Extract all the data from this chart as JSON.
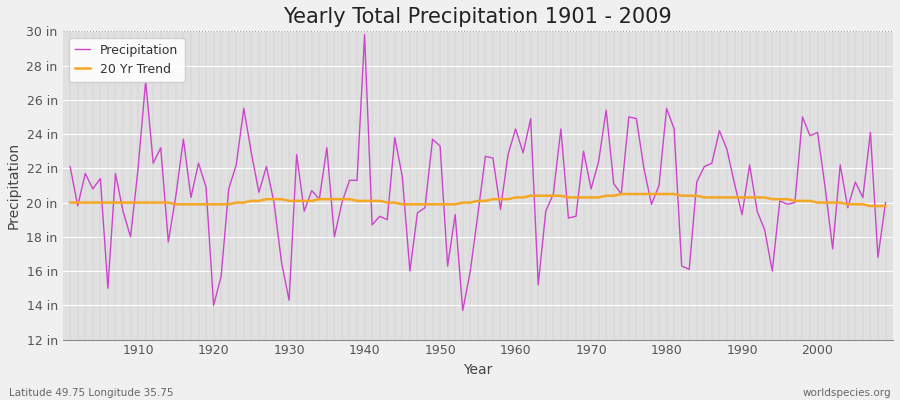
{
  "title": "Yearly Total Precipitation 1901 - 2009",
  "xlabel": "Year",
  "ylabel": "Precipitation",
  "subtitle_left": "Latitude 49.75 Longitude 35.75",
  "subtitle_right": "worldspecies.org",
  "years": [
    1901,
    1902,
    1903,
    1904,
    1905,
    1906,
    1907,
    1908,
    1909,
    1910,
    1911,
    1912,
    1913,
    1914,
    1915,
    1916,
    1917,
    1918,
    1919,
    1920,
    1921,
    1922,
    1923,
    1924,
    1925,
    1926,
    1927,
    1928,
    1929,
    1930,
    1931,
    1932,
    1933,
    1934,
    1935,
    1936,
    1937,
    1938,
    1939,
    1940,
    1941,
    1942,
    1943,
    1944,
    1945,
    1946,
    1947,
    1948,
    1949,
    1950,
    1951,
    1952,
    1953,
    1954,
    1955,
    1956,
    1957,
    1958,
    1959,
    1960,
    1961,
    1962,
    1963,
    1964,
    1965,
    1966,
    1967,
    1968,
    1969,
    1970,
    1971,
    1972,
    1973,
    1974,
    1975,
    1976,
    1977,
    1978,
    1979,
    1980,
    1981,
    1982,
    1983,
    1984,
    1985,
    1986,
    1987,
    1988,
    1989,
    1990,
    1991,
    1992,
    1993,
    1994,
    1995,
    1996,
    1997,
    1998,
    1999,
    2000,
    2001,
    2002,
    2003,
    2004,
    2005,
    2006,
    2007,
    2008,
    2009
  ],
  "precip": [
    22.1,
    19.8,
    21.7,
    20.8,
    21.4,
    15.0,
    21.7,
    19.5,
    18.0,
    22.0,
    27.1,
    22.3,
    23.2,
    17.7,
    20.4,
    23.7,
    20.3,
    22.3,
    20.9,
    14.0,
    15.7,
    20.8,
    22.2,
    25.5,
    22.9,
    20.6,
    22.1,
    20.0,
    16.5,
    14.3,
    22.8,
    19.5,
    20.7,
    20.2,
    23.2,
    18.0,
    20.0,
    21.3,
    21.3,
    29.8,
    18.7,
    19.2,
    19.0,
    23.8,
    21.5,
    16.0,
    19.4,
    19.7,
    23.7,
    23.3,
    16.3,
    19.3,
    13.7,
    16.0,
    19.3,
    22.7,
    22.6,
    19.6,
    22.8,
    24.3,
    22.9,
    24.9,
    15.2,
    19.5,
    20.5,
    24.3,
    19.1,
    19.2,
    23.0,
    20.8,
    22.4,
    25.4,
    21.1,
    20.5,
    25.0,
    24.9,
    22.0,
    19.9,
    21.0,
    25.5,
    24.3,
    16.3,
    16.1,
    21.2,
    22.1,
    22.3,
    24.2,
    23.1,
    21.1,
    19.3,
    22.2,
    19.5,
    18.4,
    16.0,
    20.1,
    19.9,
    20.0,
    25.0,
    23.9,
    24.1,
    20.9,
    17.3,
    22.2,
    19.7,
    21.2,
    20.3,
    24.1,
    16.8,
    20.0
  ],
  "trend": [
    20.0,
    20.0,
    20.0,
    20.0,
    20.0,
    20.0,
    20.0,
    20.0,
    20.0,
    20.0,
    20.0,
    20.0,
    20.0,
    20.0,
    19.9,
    19.9,
    19.9,
    19.9,
    19.9,
    19.9,
    19.9,
    19.9,
    20.0,
    20.0,
    20.1,
    20.1,
    20.2,
    20.2,
    20.2,
    20.1,
    20.1,
    20.1,
    20.1,
    20.2,
    20.2,
    20.2,
    20.2,
    20.2,
    20.1,
    20.1,
    20.1,
    20.1,
    20.0,
    20.0,
    19.9,
    19.9,
    19.9,
    19.9,
    19.9,
    19.9,
    19.9,
    19.9,
    20.0,
    20.0,
    20.1,
    20.1,
    20.2,
    20.2,
    20.2,
    20.3,
    20.3,
    20.4,
    20.4,
    20.4,
    20.4,
    20.4,
    20.3,
    20.3,
    20.3,
    20.3,
    20.3,
    20.4,
    20.4,
    20.5,
    20.5,
    20.5,
    20.5,
    20.5,
    20.5,
    20.5,
    20.5,
    20.4,
    20.4,
    20.4,
    20.3,
    20.3,
    20.3,
    20.3,
    20.3,
    20.3,
    20.3,
    20.3,
    20.3,
    20.2,
    20.2,
    20.2,
    20.1,
    20.1,
    20.1,
    20.0,
    20.0,
    20.0,
    20.0,
    19.9,
    19.9,
    19.9,
    19.8,
    19.8,
    19.8
  ],
  "precip_color": "#cc44cc",
  "trend_color": "#f5a623",
  "fig_facecolor": "#f0f0f0",
  "plot_bg_color": "#e0e0e0",
  "grid_color_h": "#ffffff",
  "grid_color_v": "#cccccc",
  "ylim": [
    12,
    30
  ],
  "yticks": [
    12,
    14,
    16,
    18,
    20,
    22,
    24,
    26,
    28,
    30
  ],
  "ytick_labels": [
    "12 in",
    "14 in",
    "16 in",
    "18 in",
    "20 in",
    "22 in",
    "24 in",
    "26 in",
    "28 in",
    "30 in"
  ],
  "xticks": [
    1910,
    1920,
    1930,
    1940,
    1950,
    1960,
    1970,
    1980,
    1990,
    2000
  ],
  "title_fontsize": 15,
  "axis_label_fontsize": 10,
  "tick_fontsize": 9,
  "legend_fontsize": 9
}
